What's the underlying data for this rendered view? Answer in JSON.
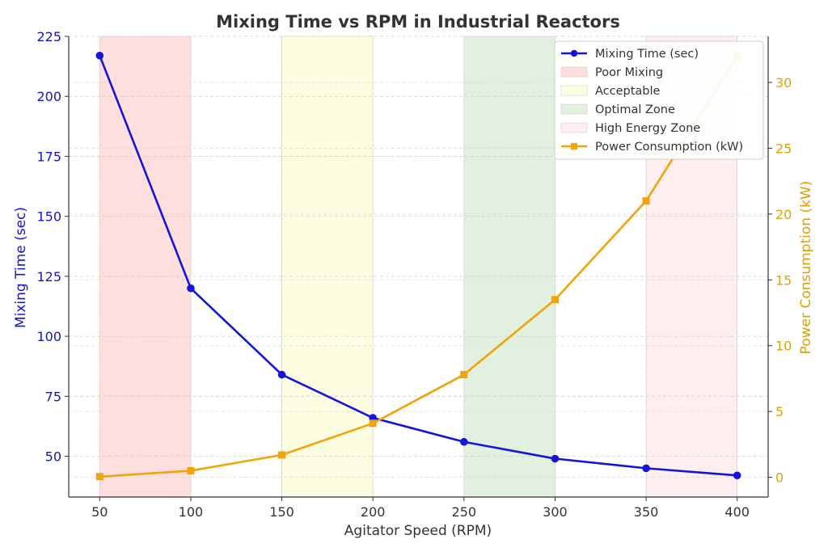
{
  "chart_data": {
    "type": "line",
    "title": "Mixing Time vs RPM in Industrial Reactors",
    "xlabel": "Agitator Speed (RPM)",
    "ylabel_left": "Mixing Time (sec)",
    "ylabel_right": "Power Consumption (kW)",
    "x": [
      50,
      100,
      150,
      200,
      250,
      300,
      350,
      400
    ],
    "x_ticks": [
      50,
      100,
      150,
      200,
      250,
      300,
      350,
      400
    ],
    "xlim": [
      33,
      417
    ],
    "ylim_left": [
      33,
      225
    ],
    "ylim_right": [
      -1.5,
      33.5
    ],
    "y_ticks_left": [
      50,
      75,
      100,
      125,
      150,
      175,
      200,
      225
    ],
    "y_ticks_right": [
      0,
      5,
      10,
      15,
      20,
      25,
      30
    ],
    "grid": true,
    "legend_position": "top-right",
    "series": [
      {
        "name": "Mixing Time (sec)",
        "axis": "left",
        "color": "#1414dc",
        "marker": "circle",
        "values": [
          217,
          120,
          84,
          66,
          56,
          49,
          45,
          42
        ]
      },
      {
        "name": "Power Consumption (kW)",
        "axis": "right",
        "color": "#f0a30a",
        "marker": "square",
        "values": [
          0.05,
          0.5,
          1.7,
          4.1,
          7.8,
          13.5,
          21,
          32
        ]
      }
    ],
    "zones": [
      {
        "name": "Poor Mixing",
        "x_start": 50,
        "x_end": 100,
        "color": "#ffdede"
      },
      {
        "name": "Acceptable",
        "x_start": 150,
        "x_end": 200,
        "color": "#fdfde2"
      },
      {
        "name": "Optimal Zone",
        "x_start": 250,
        "x_end": 300,
        "color": "#e2f0e0"
      },
      {
        "name": "High Energy Zone",
        "x_start": 350,
        "x_end": 400,
        "color": "#fdeef0"
      }
    ],
    "legend_order": [
      {
        "label": "Mixing Time (sec)",
        "kind": "line",
        "ref": "series.0"
      },
      {
        "label": "Poor Mixing",
        "kind": "patch",
        "ref": "zones.0"
      },
      {
        "label": "Acceptable",
        "kind": "patch",
        "ref": "zones.1"
      },
      {
        "label": "Optimal Zone",
        "kind": "patch",
        "ref": "zones.2"
      },
      {
        "label": "High Energy Zone",
        "kind": "patch",
        "ref": "zones.3"
      },
      {
        "label": "Power Consumption (kW)",
        "kind": "line",
        "ref": "series.1"
      }
    ]
  }
}
